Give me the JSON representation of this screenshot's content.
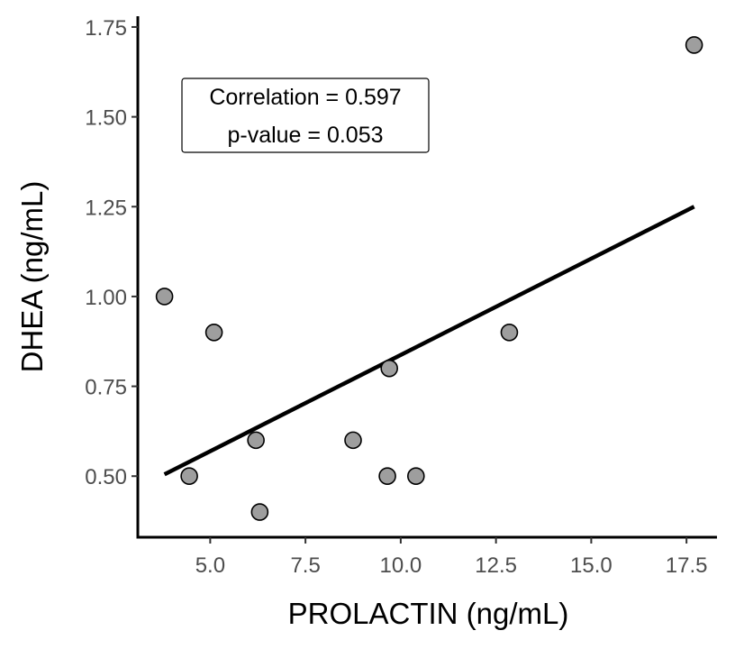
{
  "chart_data": {
    "type": "scatter",
    "xlabel": "PROLACTIN (ng/mL)",
    "ylabel": "DHEA (ng/mL)",
    "xlim": [
      3.1,
      18.3
    ],
    "ylim": [
      0.33,
      1.78
    ],
    "x_ticks": [
      5.0,
      7.5,
      10.0,
      12.5,
      15.0,
      17.5
    ],
    "x_tick_labels": [
      "5.0",
      "7.5",
      "10.0",
      "12.5",
      "15.0",
      "17.5"
    ],
    "y_ticks": [
      0.5,
      0.75,
      1.0,
      1.25,
      1.5,
      1.75
    ],
    "y_tick_labels": [
      "0.50",
      "0.75",
      "1.00",
      "1.25",
      "1.50",
      "1.75"
    ],
    "grid": false,
    "series": [
      {
        "points": [
          {
            "x": 3.8,
            "y": 1.0
          },
          {
            "x": 4.45,
            "y": 0.5
          },
          {
            "x": 5.1,
            "y": 0.9
          },
          {
            "x": 6.2,
            "y": 0.6
          },
          {
            "x": 6.3,
            "y": 0.4
          },
          {
            "x": 8.75,
            "y": 0.6
          },
          {
            "x": 9.65,
            "y": 0.5
          },
          {
            "x": 9.7,
            "y": 0.8
          },
          {
            "x": 10.4,
            "y": 0.5
          },
          {
            "x": 12.85,
            "y": 0.9
          },
          {
            "x": 17.7,
            "y": 1.7
          }
        ],
        "point_color": "#9e9e9e"
      }
    ],
    "trend_line": {
      "x": [
        3.8,
        17.7
      ],
      "y": [
        0.505,
        1.25
      ],
      "color": "#000000"
    },
    "annotation": {
      "lines": [
        "Correlation = 0.597",
        "p-value = 0.053"
      ],
      "position": "top-left"
    }
  }
}
